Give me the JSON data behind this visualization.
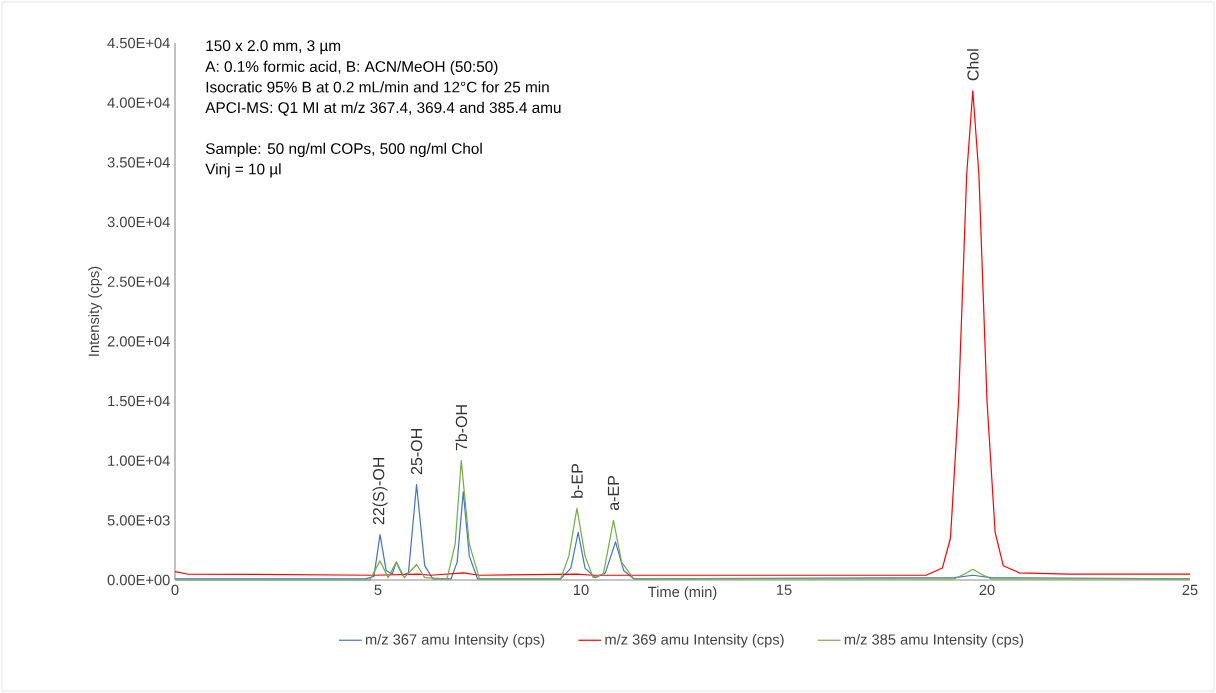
{
  "chart_data": {
    "type": "line",
    "xlabel": "Time (min)",
    "ylabel": "Intensity (cps)",
    "xlim": [
      0,
      25
    ],
    "xticks": [
      0,
      5,
      10,
      15,
      20,
      25
    ],
    "ylim": [
      0,
      45000
    ],
    "yticks": [
      {
        "value": 0,
        "label": "0.00E+00"
      },
      {
        "value": 5000,
        "label": "5.00E+03"
      },
      {
        "value": 10000,
        "label": "1.00E+04"
      },
      {
        "value": 15000,
        "label": "1.50E+04"
      },
      {
        "value": 20000,
        "label": "2.00E+04"
      },
      {
        "value": 25000,
        "label": "2.50E+04"
      },
      {
        "value": 30000,
        "label": "3.00E+04"
      },
      {
        "value": 35000,
        "label": "3.50E+04"
      },
      {
        "value": 40000,
        "label": "4.00E+04"
      },
      {
        "value": 45000,
        "label": "4.50E+04"
      }
    ],
    "legend": "bottom",
    "series": [
      {
        "name": "m/z 367 amu Intensity (cps)",
        "color": "#4472c4",
        "x": [
          0,
          4.7,
          4.9,
          5.05,
          5.2,
          5.35,
          5.45,
          5.6,
          5.75,
          5.95,
          6.15,
          6.35,
          6.8,
          6.95,
          7.1,
          7.25,
          7.45,
          9.5,
          9.75,
          9.93,
          10.1,
          10.35,
          10.6,
          10.85,
          11.05,
          11.3,
          19.2,
          19.65,
          20.1,
          25
        ],
        "values": [
          100,
          100,
          300,
          3800,
          800,
          500,
          1500,
          400,
          600,
          8000,
          1200,
          100,
          100,
          1500,
          7400,
          2000,
          100,
          100,
          1000,
          4000,
          1000,
          200,
          600,
          3200,
          800,
          100,
          200,
          400,
          200,
          100
        ]
      },
      {
        "name": "m/z 369 amu Intensity (cps)",
        "color": "#ff0000",
        "x": [
          0,
          0.3,
          4.9,
          6.0,
          6.3,
          7.1,
          7.5,
          9.9,
          10.3,
          18.5,
          18.9,
          19.1,
          19.3,
          19.5,
          19.65,
          19.8,
          20.0,
          20.2,
          20.4,
          20.8,
          22,
          25
        ],
        "values": [
          700,
          500,
          400,
          500,
          400,
          600,
          400,
          500,
          400,
          400,
          1000,
          3500,
          15000,
          34000,
          41000,
          34000,
          15000,
          4000,
          1200,
          600,
          500,
          500
        ]
      },
      {
        "name": "m/z 385 amu Intensity (cps)",
        "color": "#70ad47",
        "x": [
          0,
          4.8,
          5.05,
          5.25,
          5.45,
          5.65,
          5.95,
          6.15,
          6.7,
          6.9,
          7.05,
          7.25,
          7.5,
          9.5,
          9.7,
          9.9,
          10.1,
          10.3,
          10.55,
          10.8,
          11.0,
          11.3,
          19.2,
          19.45,
          19.65,
          19.85,
          20.1,
          25
        ],
        "values": [
          0,
          0,
          1600,
          200,
          1500,
          200,
          1300,
          200,
          100,
          3000,
          10000,
          3000,
          100,
          100,
          2000,
          6000,
          2000,
          200,
          500,
          5000,
          1500,
          100,
          100,
          500,
          900,
          500,
          100,
          100
        ]
      }
    ],
    "annotations": [
      "150 x 2.0 mm, 3 µm",
      "A: 0.1% formic acid, B: ACN/MeOH (50:50)",
      "Isocratic 95% B at 0.2 mL/min and 12°C for 25 min",
      "APCI-MS: Q1 MI at m/z 367.4, 369.4 and 385.4 amu",
      "Sample: 50 ng/ml COPs, 500 ng/ml Chol",
      "Vinj = 10 µl",
      {
        "text": "22(S)-OH",
        "x": 5.05,
        "y": 3800
      },
      {
        "text": "25-OH",
        "x": 5.95,
        "y": 8000
      },
      {
        "text": "7b-OH",
        "x": 7.05,
        "y": 10000
      },
      {
        "text": "b-EP",
        "x": 9.9,
        "y": 6000
      },
      {
        "text": "a-EP",
        "x": 10.8,
        "y": 5000
      },
      {
        "text": "Chol",
        "x": 19.65,
        "y": 41000
      }
    ]
  }
}
